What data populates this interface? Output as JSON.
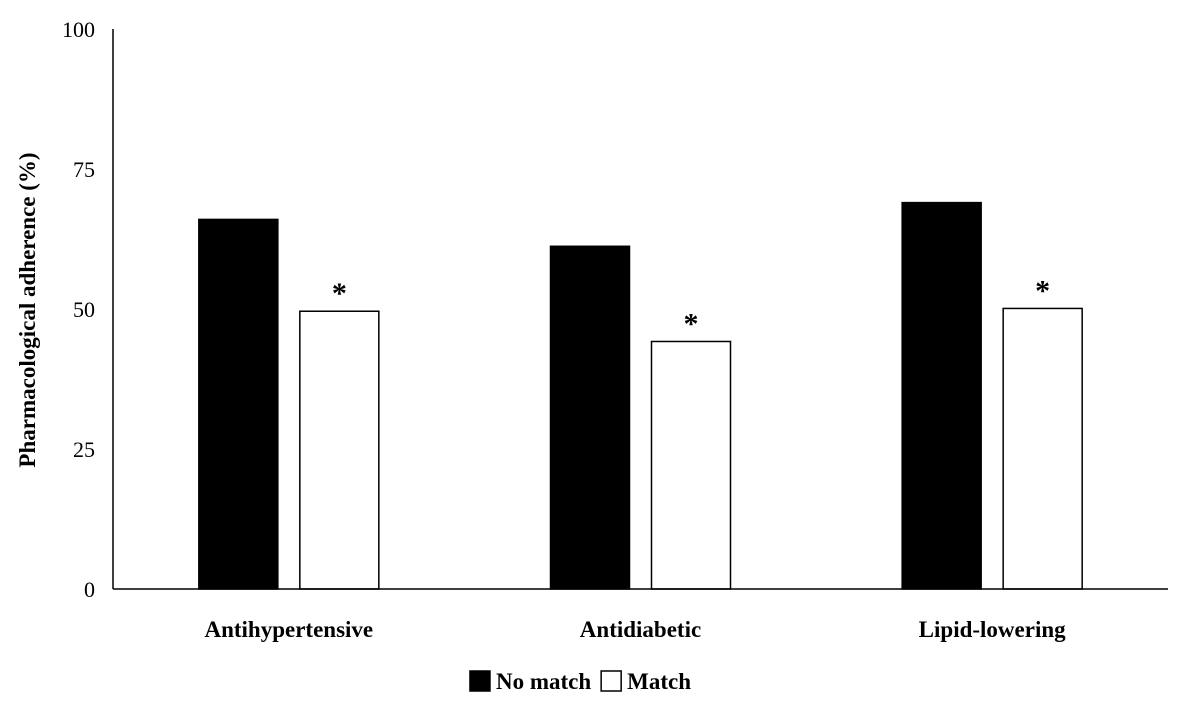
{
  "chart_data": {
    "type": "bar",
    "categories": [
      "Antihypertensive",
      "Antidiabetic",
      "Lipid-lowering"
    ],
    "series": [
      {
        "name": "No match",
        "values": [
          66,
          61.2,
          69
        ],
        "color": "#000000"
      },
      {
        "name": "Match",
        "values": [
          49.6,
          44.2,
          50.1
        ],
        "color": "#ffffff"
      }
    ],
    "annotations": [
      "*",
      "*",
      "*"
    ],
    "ylabel": "Pharmacological adherence (%)",
    "xlabel": "",
    "title": "",
    "ylim": [
      0,
      100
    ],
    "yticks": [
      "0",
      "25",
      "50",
      "75",
      "100"
    ],
    "ytick_values": [
      0,
      25,
      50,
      75,
      100
    ],
    "grid": false,
    "legend_position": "bottom"
  }
}
